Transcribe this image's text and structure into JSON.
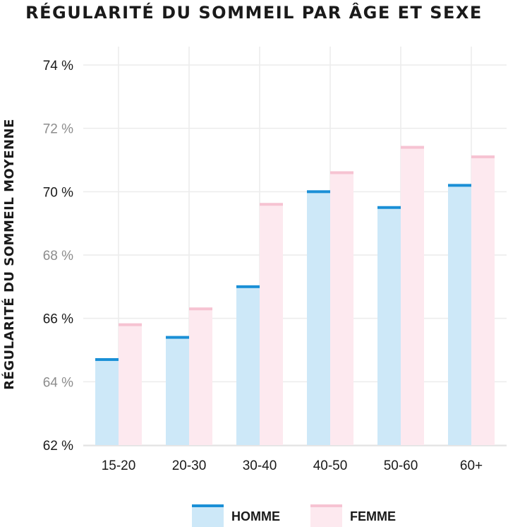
{
  "chart_data": {
    "type": "bar",
    "title": "RÉGULARITÉ DU SOMMEIL PAR ÂGE ET SEXE",
    "ylabel": "RÉGULARITÉ DU SOMMEIL MOYENNE",
    "xlabel": "",
    "categories": [
      "15-20",
      "20-30",
      "30-40",
      "40-50",
      "50-60",
      "60+"
    ],
    "series": [
      {
        "name": "HOMME",
        "values": [
          64.7,
          65.4,
          67.0,
          70.0,
          69.5,
          70.2
        ],
        "color": "#cde8f8",
        "top_color": "#1a8fd6"
      },
      {
        "name": "FEMME",
        "values": [
          65.8,
          66.3,
          69.6,
          70.6,
          71.4,
          71.1
        ],
        "color": "#fde9ef",
        "top_color": "#f6c3d2"
      }
    ],
    "ylim": [
      62,
      74
    ],
    "yticks": [
      {
        "value": 74,
        "label": "74 %",
        "color": "#1a1a1a"
      },
      {
        "value": 72,
        "label": "72 %",
        "color": "#8c8c8c"
      },
      {
        "value": 70,
        "label": "70 %",
        "color": "#1a1a1a"
      },
      {
        "value": 68,
        "label": "68 %",
        "color": "#8c8c8c"
      },
      {
        "value": 66,
        "label": "66 %",
        "color": "#1a1a1a"
      },
      {
        "value": 64,
        "label": "64 %",
        "color": "#8c8c8c"
      },
      {
        "value": 62,
        "label": "62 %",
        "color": "#1a1a1a"
      }
    ],
    "grid": true,
    "legend_position": "bottom-center"
  }
}
